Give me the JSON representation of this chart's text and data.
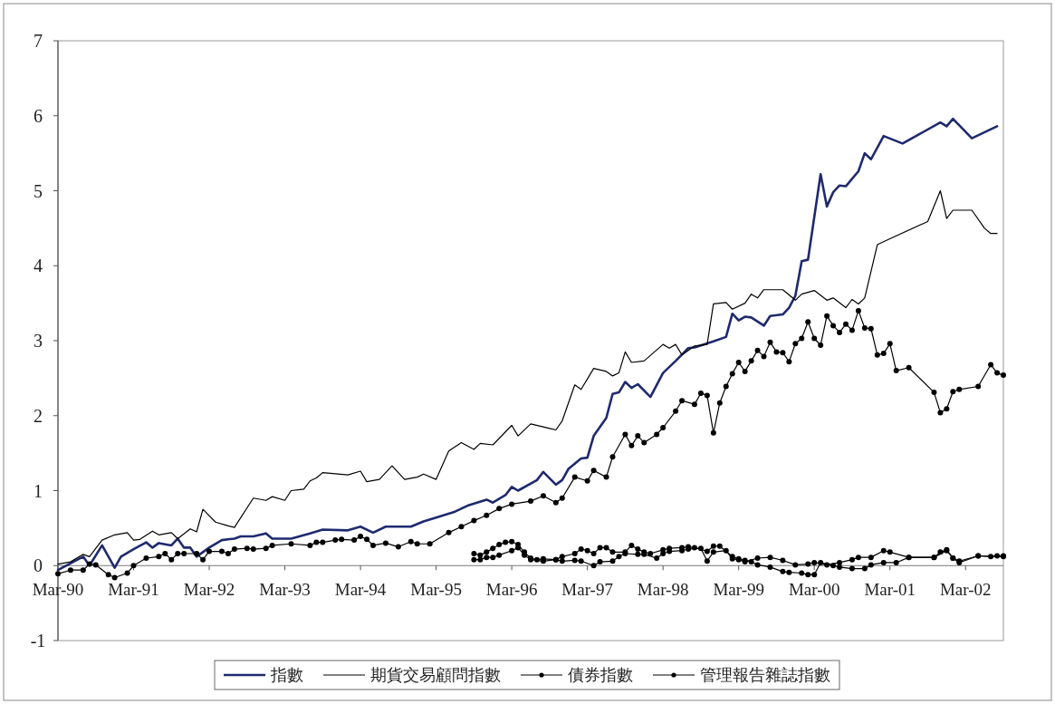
{
  "chart_data": {
    "type": "line",
    "xlim": [
      "1990-03",
      "2002-09"
    ],
    "xticks": [
      {
        "value": "1990-03",
        "label": "Mar-90"
      },
      {
        "value": "1991-03",
        "label": "Mar-91"
      },
      {
        "value": "1992-03",
        "label": "Mar-92"
      },
      {
        "value": "1993-03",
        "label": "Mar-93"
      },
      {
        "value": "1994-03",
        "label": "Mar-94"
      },
      {
        "value": "1995-03",
        "label": "Mar-95"
      },
      {
        "value": "1996-03",
        "label": "Mar-96"
      },
      {
        "value": "1997-03",
        "label": "Mar-97"
      },
      {
        "value": "1998-03",
        "label": "Mar-98"
      },
      {
        "value": "1999-03",
        "label": "Mar-99"
      },
      {
        "value": "2000-03",
        "label": "Mar-00"
      },
      {
        "value": "2001-03",
        "label": "Mar-01"
      },
      {
        "value": "2002-03",
        "label": "Mar-02"
      }
    ],
    "ylim": [
      -1,
      7
    ],
    "yticks": [
      -1,
      0,
      1,
      2,
      3,
      4,
      5,
      6,
      7
    ],
    "grid": false,
    "legend": "bottom",
    "series": [
      {
        "name": "指數",
        "color": "#1f2a6e",
        "marker": "none",
        "x": [
          "1990-03",
          "1990-07",
          "1990-08",
          "1990-10",
          "1990-12",
          "1991-01",
          "1991-03",
          "1991-05",
          "1991-06",
          "1991-07",
          "1991-09",
          "1991-10",
          "1991-11",
          "1991-12",
          "1992-01",
          "1992-03",
          "1992-05",
          "1992-07",
          "1992-08",
          "1992-10",
          "1992-12",
          "1993-01",
          "1993-04",
          "1993-07",
          "1993-09",
          "1994-01",
          "1994-03",
          "1994-05",
          "1994-07",
          "1994-11",
          "1995-01",
          "1995-03",
          "1995-06",
          "1995-08",
          "1995-11",
          "1995-12",
          "1996-02",
          "1996-03",
          "1996-04",
          "1996-07",
          "1996-08",
          "1996-10",
          "1996-11",
          "1996-12",
          "1997-02",
          "1997-03",
          "1997-04",
          "1997-06",
          "1997-07",
          "1997-08",
          "1997-09",
          "1997-10",
          "1997-11",
          "1998-01",
          "1998-03",
          "1998-05",
          "1998-07",
          "1998-08",
          "1998-11",
          "1999-01",
          "1999-02",
          "1999-03",
          "1999-04",
          "1999-05",
          "1999-07",
          "1999-08",
          "1999-10",
          "1999-11",
          "1999-12",
          "2000-01",
          "2000-02",
          "2000-04",
          "2000-05",
          "2000-06",
          "2000-07",
          "2000-08",
          "2000-10",
          "2000-11",
          "2000-12",
          "2001-02",
          "2001-05",
          "2001-11",
          "2001-12",
          "2002-01",
          "2002-04",
          "2002-08"
        ],
        "values": [
          -0.06,
          0.12,
          0,
          0.27,
          -0.03,
          0.12,
          0.22,
          0.31,
          0.24,
          0.3,
          0.27,
          0.36,
          0.24,
          0.24,
          0.12,
          0.24,
          0.34,
          0.36,
          0.39,
          0.39,
          0.43,
          0.36,
          0.36,
          0.43,
          0.48,
          0.47,
          0.52,
          0.44,
          0.52,
          0.52,
          0.59,
          0.64,
          0.72,
          0.8,
          0.88,
          0.84,
          0.94,
          1.05,
          1.0,
          1.14,
          1.25,
          1.08,
          1.14,
          1.29,
          1.43,
          1.44,
          1.73,
          1.97,
          2.29,
          2.31,
          2.45,
          2.37,
          2.42,
          2.25,
          2.57,
          2.73,
          2.9,
          2.91,
          2.99,
          3.05,
          3.36,
          3.27,
          3.32,
          3.31,
          3.2,
          3.33,
          3.35,
          3.44,
          3.6,
          4.06,
          4.08,
          5.22,
          4.79,
          4.98,
          5.07,
          5.06,
          5.26,
          5.5,
          5.42,
          5.73,
          5.63,
          5.91,
          5.86,
          5.96,
          5.7,
          5.86
        ]
      },
      {
        "color": "#000000",
        "marker": "circle",
        "x": [
          "1990-03",
          "1990-05",
          "1990-07",
          "1990-08",
          "1990-09",
          "1990-11",
          "1990-12",
          "1991-02",
          "1991-03",
          "1991-05",
          "1991-07",
          "1991-08",
          "1991-09",
          "1991-10",
          "1991-11",
          "1992-01",
          "1992-02",
          "1992-03",
          "1992-05",
          "1992-06",
          "1992-07",
          "1992-09",
          "1992-10",
          "1992-12",
          "1993-01",
          "1993-04",
          "1993-07",
          "1993-08",
          "1993-09",
          "1993-11",
          "1993-12",
          "1994-02",
          "1994-03",
          "1994-04",
          "1994-05",
          "1994-07",
          "1994-09",
          "1994-11",
          "1994-12",
          "1995-02",
          "1995-05",
          "1995-07",
          "1995-09",
          "1995-11",
          "1996-01",
          "1996-03",
          "1996-06",
          "1996-08",
          "1996-10",
          "1996-11",
          "1997-01",
          "1997-03",
          "1997-04",
          "1997-06",
          "1997-07",
          "1997-09",
          "1997-10",
          "1997-11",
          "1997-12",
          "1998-02",
          "1998-03",
          "1998-05",
          "1998-06",
          "1998-08",
          "1998-09",
          "1998-10",
          "1998-11",
          "1998-12",
          "1999-01",
          "1999-02",
          "1999-03",
          "1999-04",
          "1999-05",
          "1999-06",
          "1999-07",
          "1999-08",
          "1999-09",
          "1999-10",
          "1999-11",
          "1999-12",
          "2000-01",
          "2000-02",
          "2000-03",
          "2000-04",
          "2000-05",
          "2000-06",
          "2000-07",
          "2000-08",
          "2000-09",
          "2000-10",
          "2000-11",
          "2000-12",
          "2001-01",
          "2001-02",
          "2001-03",
          "2001-04",
          "2001-06",
          "2001-10",
          "2001-11",
          "2001-12",
          "2002-01",
          "2002-02",
          "2002-05",
          "2002-07",
          "2002-08",
          "2002-09"
        ],
        "values": [
          -0.11,
          -0.06,
          -0.06,
          0.02,
          0.01,
          -0.12,
          -0.16,
          -0.1,
          0,
          0.1,
          0.12,
          0.16,
          0.08,
          0.16,
          0.16,
          0.16,
          0.08,
          0.19,
          0.19,
          0.16,
          0.22,
          0.23,
          0.22,
          0.23,
          0.27,
          0.29,
          0.27,
          0.31,
          0.31,
          0.34,
          0.35,
          0.34,
          0.39,
          0.35,
          0.27,
          0.3,
          0.25,
          0.32,
          0.29,
          0.29,
          0.44,
          0.52,
          0.6,
          0.67,
          0.76,
          0.82,
          0.86,
          0.93,
          0.84,
          0.9,
          1.18,
          1.13,
          1.27,
          1.18,
          1.45,
          1.75,
          1.6,
          1.73,
          1.64,
          1.75,
          1.84,
          2.06,
          2.2,
          2.15,
          2.3,
          2.27,
          1.77,
          2.17,
          2.39,
          2.56,
          2.71,
          2.59,
          2.73,
          2.87,
          2.79,
          2.98,
          2.85,
          2.84,
          2.72,
          2.96,
          3.03,
          3.25,
          3.03,
          2.94,
          3.33,
          3.2,
          3.11,
          3.22,
          3.14,
          3.4,
          3.17,
          3.16,
          2.81,
          2.83,
          2.96,
          2.6,
          2.64,
          2.31,
          2.04,
          2.09,
          2.32,
          2.35,
          2.39,
          2.68,
          2.57,
          2.54
        ]
      },
      {
        "name": "期貨交易顧問指數",
        "color": "#000000",
        "marker": "none",
        "x": [
          "1990-03",
          "1990-05",
          "1990-07",
          "1990-08",
          "1990-10",
          "1990-12",
          "1991-02",
          "1991-03",
          "1991-04",
          "1991-06",
          "1991-07",
          "1991-09",
          "1991-10",
          "1991-12",
          "1992-01",
          "1992-02",
          "1992-04",
          "1992-06",
          "1992-07",
          "1992-10",
          "1992-12",
          "1993-01",
          "1993-03",
          "1993-04",
          "1993-06",
          "1993-07",
          "1993-08",
          "1993-09",
          "1994-01",
          "1994-03",
          "1994-04",
          "1994-06",
          "1994-08",
          "1994-10",
          "1994-12",
          "1995-01",
          "1995-03",
          "1995-05",
          "1995-07",
          "1995-09",
          "1995-10",
          "1995-12",
          "1996-03",
          "1996-04",
          "1996-06",
          "1996-08",
          "1996-09",
          "1996-10",
          "1996-11",
          "1997-01",
          "1997-02",
          "1997-04",
          "1997-06",
          "1997-07",
          "1997-08",
          "1997-09",
          "1997-10",
          "1997-12",
          "1998-03",
          "1998-04",
          "1998-05",
          "1998-06",
          "1998-08",
          "1998-10",
          "1998-11",
          "1999-01",
          "1999-02",
          "1999-04",
          "1999-05",
          "1999-06",
          "1999-07",
          "1999-10",
          "1999-12",
          "2000-01",
          "2000-03",
          "2000-05",
          "2000-06",
          "2000-08",
          "2000-09",
          "2000-10",
          "2000-11",
          "2001-01",
          "2001-03",
          "2001-09",
          "2001-11",
          "2001-12",
          "2002-01",
          "2002-04",
          "2002-06",
          "2002-07",
          "2002-08"
        ],
        "values": [
          0.02,
          0.05,
          0.15,
          0.12,
          0.34,
          0.41,
          0.44,
          0.34,
          0.35,
          0.46,
          0.41,
          0.44,
          0.36,
          0.49,
          0.45,
          0.75,
          0.58,
          0.53,
          0.51,
          0.9,
          0.87,
          0.92,
          0.87,
          1.0,
          1.02,
          1.13,
          1.17,
          1.24,
          1.21,
          1.26,
          1.12,
          1.15,
          1.33,
          1.15,
          1.18,
          1.22,
          1.15,
          1.53,
          1.64,
          1.55,
          1.63,
          1.61,
          1.87,
          1.73,
          1.89,
          1.85,
          1.83,
          1.81,
          1.93,
          2.41,
          2.35,
          2.63,
          2.59,
          2.53,
          2.57,
          2.85,
          2.71,
          2.73,
          2.95,
          2.9,
          2.95,
          2.81,
          2.93,
          2.95,
          3.49,
          3.51,
          3.42,
          3.5,
          3.62,
          3.57,
          3.68,
          3.68,
          3.54,
          3.62,
          3.67,
          3.54,
          3.57,
          3.44,
          3.55,
          3.49,
          3.57,
          4.28,
          4.36,
          4.59,
          5.0,
          4.63,
          4.74,
          4.74,
          4.5,
          4.43,
          4.43
        ]
      },
      {
        "name": "債券指數",
        "color": "#000000",
        "marker": "circle",
        "x": [
          "1995-09",
          "1995-10",
          "1995-11",
          "1995-12",
          "1996-01",
          "1996-02",
          "1996-03",
          "1996-04",
          "1996-05",
          "1996-06",
          "1996-07",
          "1996-08",
          "1996-10",
          "1996-11",
          "1997-01",
          "1997-02",
          "1997-03",
          "1997-04",
          "1997-05",
          "1997-06",
          "1997-07",
          "1997-09",
          "1997-10",
          "1997-11",
          "1997-12",
          "1998-01",
          "1998-03",
          "1998-04",
          "1998-06",
          "1998-07",
          "1998-08",
          "1998-10",
          "1998-11",
          "1998-12",
          "1999-02",
          "1999-03",
          "1999-04",
          "1999-05",
          "1999-06",
          "1999-08",
          "1999-10",
          "1999-11",
          "2000-01",
          "2000-02",
          "2000-03",
          "2000-04",
          "2000-06",
          "2000-07",
          "2000-09",
          "2000-11",
          "2000-12",
          "2001-02",
          "2001-04",
          "2001-06",
          "2001-10",
          "2001-11",
          "2001-12",
          "2002-01",
          "2002-02",
          "2002-05",
          "2002-07",
          "2002-08",
          "2002-09"
        ],
        "values": [
          0.16,
          0.14,
          0.18,
          0.23,
          0.28,
          0.31,
          0.32,
          0.28,
          0.18,
          0.1,
          0.08,
          0.09,
          0.08,
          0.12,
          0.16,
          0.22,
          0.2,
          0.16,
          0.24,
          0.24,
          0.18,
          0.18,
          0.27,
          0.22,
          0.18,
          0.16,
          0.21,
          0.23,
          0.24,
          0.25,
          0.24,
          0.19,
          0.26,
          0.26,
          0.12,
          0.09,
          0.07,
          0.05,
          0.01,
          -0.02,
          -0.08,
          -0.09,
          -0.1,
          -0.12,
          -0.12,
          0.04,
          0,
          -0.02,
          -0.04,
          -0.04,
          0.01,
          0.04,
          0.04,
          0.11,
          0.11,
          0.18,
          0.21,
          0.1,
          0.04,
          0.13,
          0.12,
          0.13,
          0.13
        ]
      },
      {
        "name": "管理報告雜誌指數",
        "color": "#000000",
        "marker": "circle",
        "x": [
          "1995-09",
          "1995-10",
          "1995-11",
          "1995-12",
          "1996-01",
          "1996-03",
          "1996-04",
          "1996-05",
          "1996-06",
          "1996-08",
          "1996-10",
          "1996-11",
          "1997-01",
          "1997-02",
          "1997-04",
          "1997-05",
          "1997-07",
          "1997-08",
          "1997-09",
          "1997-11",
          "1997-12",
          "1998-02",
          "1998-03",
          "1998-04",
          "1998-06",
          "1998-07",
          "1998-09",
          "1998-10",
          "1998-11",
          "1999-01",
          "1999-02",
          "1999-03",
          "1999-04",
          "1999-06",
          "1999-08",
          "1999-10",
          "1999-12",
          "2000-02",
          "2000-03",
          "2000-05",
          "2000-07",
          "2000-09",
          "2000-10",
          "2000-12",
          "2001-02",
          "2001-03",
          "2001-06",
          "2001-10",
          "2001-12",
          "2002-01",
          "2002-02",
          "2002-05",
          "2002-09"
        ],
        "values": [
          0.08,
          0.08,
          0.11,
          0.11,
          0.14,
          0.2,
          0.24,
          0.14,
          0.08,
          0.06,
          0.08,
          0.06,
          0.07,
          0.06,
          0.0,
          0.05,
          0.06,
          0.12,
          0.16,
          0.15,
          0.15,
          0.1,
          0.16,
          0.19,
          0.2,
          0.22,
          0.23,
          0.06,
          0.18,
          0.2,
          0.09,
          0.08,
          0.05,
          0.1,
          0.11,
          0.07,
          0.01,
          0.02,
          0.04,
          0.01,
          0.04,
          0.08,
          0.11,
          0.11,
          0.2,
          0.18,
          0.11,
          0.11,
          0.2,
          0.1,
          0.06,
          0.13,
          0.12
        ]
      }
    ]
  }
}
